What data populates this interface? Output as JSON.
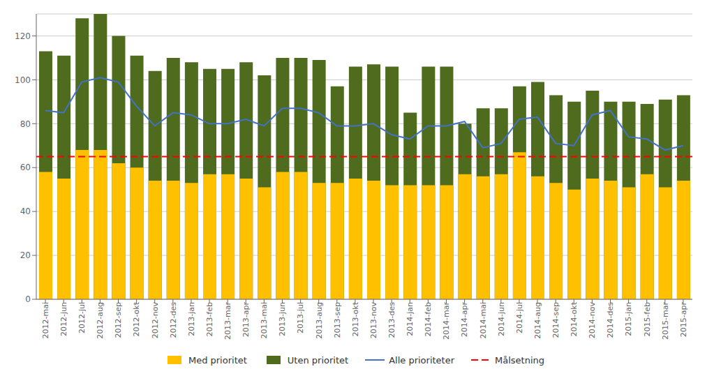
{
  "chart_data": {
    "type": "bar",
    "categories": [
      "2012-mai",
      "2012-jun",
      "2012-jul",
      "2012-aug",
      "2012-sep",
      "2012-okt",
      "2012-nov",
      "2012-des",
      "2013-jan",
      "2013-feb",
      "2013-mar",
      "2013-apr",
      "2013-mai",
      "2013-jun",
      "2013-jul",
      "2013-aug",
      "2013-sep",
      "2013-okt",
      "2013-nov",
      "2013-des",
      "2014-jan",
      "2014-feb",
      "2014-mar",
      "2014-apr",
      "2014-mai",
      "2014-jun",
      "2014-jul",
      "2014-aug",
      "2014-sep",
      "2014-okt",
      "2014-nov",
      "2014-des",
      "2015-jan",
      "2015-feb",
      "2015-mar",
      "2015-apr"
    ],
    "series": [
      {
        "name": "Med prioritet",
        "type": "bar",
        "color": "#FFC000",
        "values": [
          58,
          55,
          68,
          68,
          62,
          60,
          54,
          54,
          53,
          57,
          57,
          55,
          51,
          58,
          58,
          53,
          53,
          55,
          54,
          52,
          52,
          52,
          52,
          57,
          56,
          57,
          67,
          56,
          53,
          50,
          55,
          54,
          51,
          57,
          51,
          54
        ]
      },
      {
        "name": "Uten prioritet",
        "type": "bar",
        "color": "#4E6B1E",
        "values": [
          113,
          111,
          128,
          130,
          120,
          111,
          104,
          110,
          108,
          105,
          105,
          108,
          102,
          110,
          110,
          109,
          97,
          106,
          107,
          106,
          85,
          106,
          106,
          80,
          87,
          87,
          97,
          99,
          93,
          90,
          95,
          90,
          90,
          89,
          91,
          93
        ]
      },
      {
        "name": "Alle prioriteter",
        "type": "line",
        "color": "#4472C4",
        "line_style": "solid",
        "values": [
          86,
          85,
          99,
          101,
          99,
          88,
          79,
          85,
          84,
          80,
          80,
          82,
          79,
          87,
          87,
          85,
          79,
          79,
          80,
          75,
          73,
          79,
          79,
          81,
          69,
          71,
          82,
          83,
          71,
          70,
          84,
          86,
          74,
          73,
          68,
          70
        ]
      },
      {
        "name": "Målsetning",
        "type": "hline",
        "color": "#FF0000",
        "line_style": "dashed",
        "value": 65
      }
    ],
    "ylim": [
      0,
      130
    ],
    "yticks": [
      0,
      20,
      40,
      60,
      80,
      100,
      120
    ],
    "grid": true,
    "legend": "bottom"
  }
}
